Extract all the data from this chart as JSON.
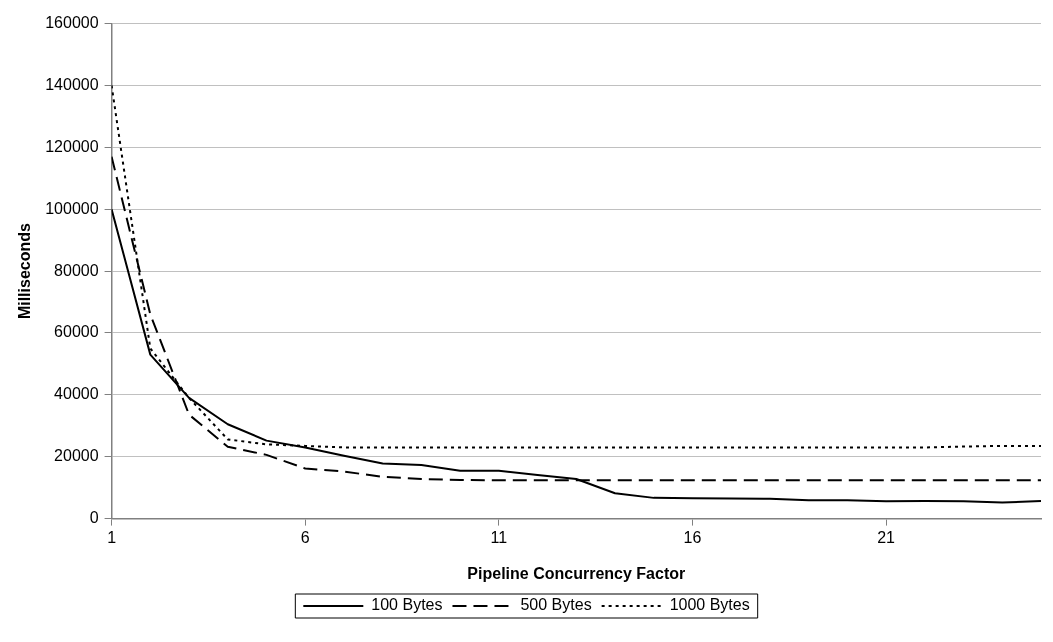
{
  "chart_data": {
    "type": "line",
    "xlabel": "Pipeline Concurrency Factor",
    "ylabel": "Milliseconds",
    "x": [
      1,
      2,
      3,
      4,
      5,
      6,
      7,
      8,
      9,
      10,
      11,
      12,
      13,
      14,
      15,
      16,
      17,
      18,
      19,
      20,
      21,
      22,
      23,
      24,
      25
    ],
    "xlim": [
      1,
      25
    ],
    "xticks": [
      1,
      6,
      11,
      16,
      21
    ],
    "ylim": [
      0,
      160000
    ],
    "yticks": [
      0,
      20000,
      40000,
      60000,
      80000,
      100000,
      120000,
      140000,
      160000
    ],
    "grid": "y",
    "legend": "bottom",
    "marker": "none",
    "series": [
      {
        "name": "100 Bytes",
        "color": "#000000",
        "line_style": "solid",
        "values": [
          100000,
          53000,
          39000,
          30500,
          25200,
          23000,
          20300,
          17800,
          17300,
          15500,
          15500,
          14100,
          12800,
          8200,
          6700,
          6600,
          6500,
          6400,
          5900,
          5900,
          5600,
          5700,
          5600,
          5200,
          5700
        ]
      },
      {
        "name": "500 Bytes",
        "color": "#000000",
        "line_style": "dashed",
        "values": [
          117000,
          66000,
          33600,
          23200,
          20600,
          16200,
          15200,
          13500,
          12800,
          12500,
          12400,
          12400,
          12400,
          12400,
          12400,
          12400,
          12400,
          12400,
          12400,
          12400,
          12400,
          12400,
          12400,
          12400,
          12400
        ]
      },
      {
        "name": "1000 Bytes",
        "color": "#000000",
        "line_style": "dotted",
        "values": [
          140000,
          55000,
          39000,
          25600,
          24000,
          23500,
          23000,
          23000,
          23000,
          23000,
          23000,
          23000,
          23000,
          23000,
          23000,
          23000,
          23000,
          23000,
          23000,
          23000,
          23000,
          23000,
          23300,
          23500,
          23500
        ]
      }
    ]
  }
}
